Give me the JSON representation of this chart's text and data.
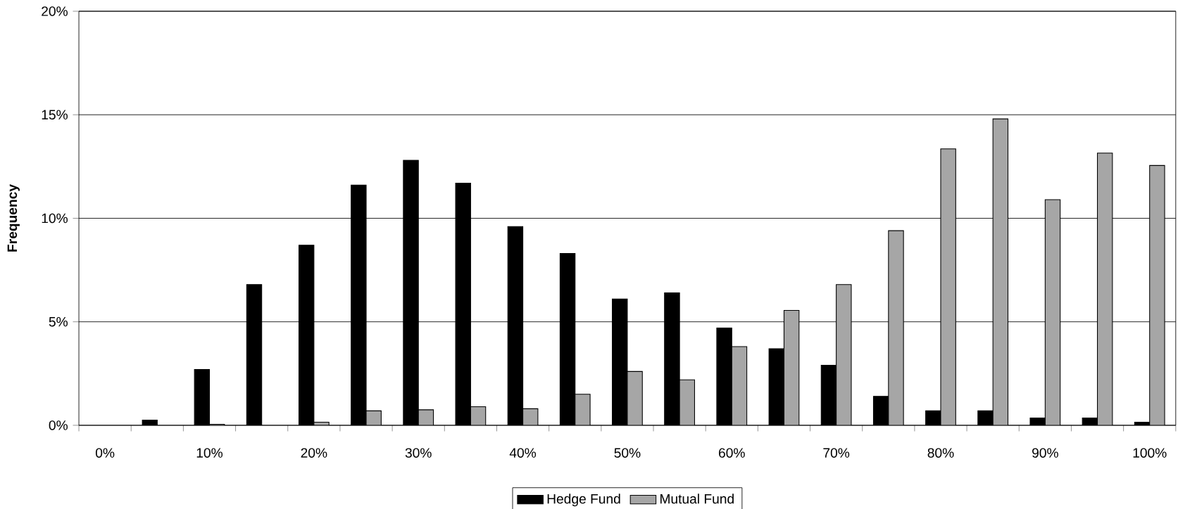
{
  "chart_data": {
    "type": "bar",
    "ylabel": "Frequency",
    "categories": [
      "0%",
      null,
      "10%",
      null,
      "20%",
      null,
      "30%",
      null,
      "40%",
      null,
      "50%",
      null,
      "60%",
      null,
      "70%",
      null,
      "80%",
      null,
      "90%",
      null,
      "100%"
    ],
    "series": [
      {
        "name": "Hedge Fund",
        "color": "#000000",
        "values": [
          null,
          0.25,
          2.7,
          6.8,
          8.7,
          11.6,
          12.8,
          11.7,
          9.6,
          8.3,
          6.1,
          6.4,
          4.7,
          3.7,
          2.9,
          1.4,
          0.7,
          0.7,
          0.35,
          0.35,
          0.15
        ]
      },
      {
        "name": "Mutual Fund",
        "color": "#a6a6a6",
        "values": [
          null,
          null,
          0.05,
          null,
          0.15,
          0.7,
          0.75,
          0.9,
          0.8,
          1.5,
          2.6,
          2.2,
          3.8,
          5.55,
          6.8,
          9.4,
          13.35,
          14.8,
          10.9,
          13.15,
          12.55
        ]
      }
    ],
    "ylim": [
      0,
      20
    ],
    "yticks": [
      {
        "value": 0,
        "label": "0%"
      },
      {
        "value": 5,
        "label": "5%"
      },
      {
        "value": 10,
        "label": "10%"
      },
      {
        "value": 15,
        "label": "15%"
      },
      {
        "value": 20,
        "label": "20%"
      }
    ],
    "grid": "y",
    "legend": "bottom"
  }
}
